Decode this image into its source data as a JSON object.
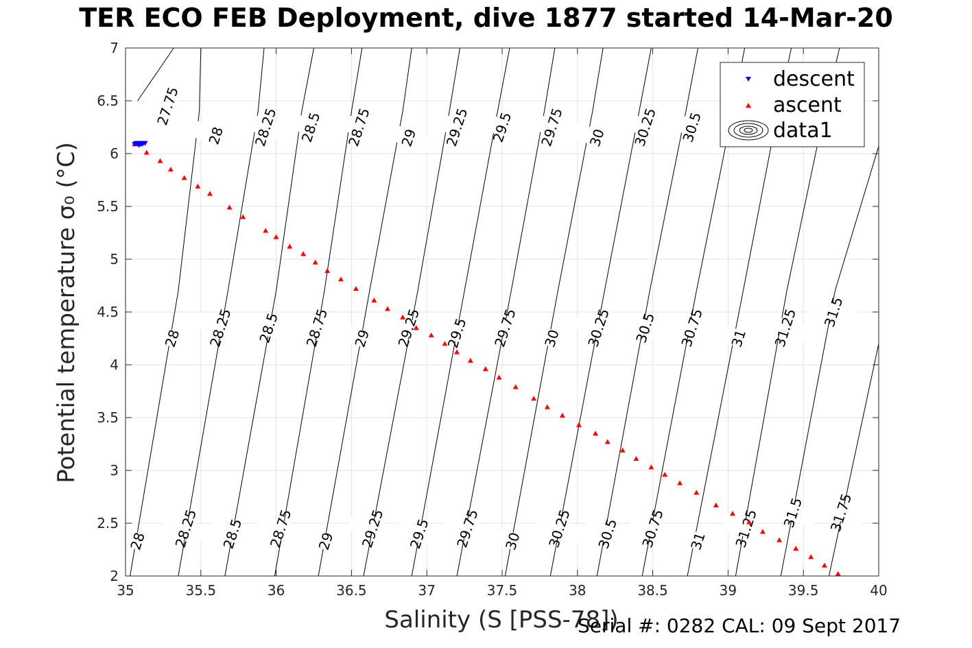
{
  "figure": {
    "title": "TER ECO FEB Deployment, dive 1877 started 14-Mar-20",
    "serial_note": "Serial #: 0282  CAL: 09 Sept 2017"
  },
  "chart_data": {
    "type": "scatter",
    "xlabel": "Salinity (S [PSS-78])",
    "ylabel": "Potential temperature σ₀ (°C)",
    "xlim": [
      35,
      40
    ],
    "ylim": [
      2,
      7
    ],
    "x_ticks": [
      "35",
      "35.5",
      "36",
      "36.5",
      "37",
      "37.5",
      "38",
      "38.5",
      "39",
      "39.5",
      "40"
    ],
    "y_ticks": [
      "2",
      "2.5",
      "3",
      "3.5",
      "4",
      "4.5",
      "5",
      "5.5",
      "6",
      "6.5",
      "7"
    ],
    "grid": true,
    "legend_position": "top-right",
    "legend": [
      "descent",
      "ascent",
      "data1"
    ],
    "series": [
      {
        "name": "descent",
        "color": "#0000ff",
        "marker": "triangle-down",
        "x": [
          35.06,
          35.07,
          35.08,
          35.09,
          35.1,
          35.11,
          35.12,
          35.13,
          35.09,
          35.11
        ],
        "y": [
          6.09,
          6.1,
          6.09,
          6.1,
          6.09,
          6.1,
          6.1,
          6.1,
          6.08,
          6.09
        ]
      },
      {
        "name": "ascent",
        "color": "#ff0000",
        "marker": "triangle-up",
        "x": [
          35.06,
          35.14,
          35.23,
          35.3,
          35.39,
          35.48,
          35.56,
          35.69,
          35.78,
          35.93,
          36.0,
          36.09,
          36.18,
          36.26,
          36.34,
          36.43,
          36.53,
          36.65,
          36.74,
          36.84,
          36.93,
          37.03,
          37.12,
          37.2,
          37.29,
          37.39,
          37.48,
          37.59,
          37.71,
          37.8,
          37.9,
          38.01,
          38.12,
          38.2,
          38.3,
          38.39,
          38.49,
          38.58,
          38.68,
          38.79,
          38.92,
          39.03,
          39.14,
          39.23,
          39.34,
          39.45,
          39.55,
          39.64,
          39.73
        ],
        "y": [
          6.09,
          6.01,
          5.93,
          5.85,
          5.77,
          5.69,
          5.62,
          5.49,
          5.4,
          5.27,
          5.21,
          5.12,
          5.05,
          4.97,
          4.89,
          4.81,
          4.72,
          4.61,
          4.53,
          4.45,
          4.35,
          4.28,
          4.2,
          4.12,
          4.04,
          3.96,
          3.88,
          3.79,
          3.68,
          3.6,
          3.52,
          3.43,
          3.35,
          3.27,
          3.19,
          3.11,
          3.03,
          2.96,
          2.88,
          2.79,
          2.67,
          2.59,
          2.51,
          2.42,
          2.34,
          2.26,
          2.18,
          2.1,
          2.02
        ]
      }
    ],
    "density_contours": {
      "name": "data1",
      "color": "#000000",
      "lines": [
        {
          "label": "27.75",
          "points": [
            [
              35.08,
              6.5
            ],
            [
              35.32,
              7.0
            ]
          ]
        },
        {
          "label": "28",
          "points": [
            [
              35.03,
              2.0
            ],
            [
              35.35,
              4.7
            ],
            [
              35.49,
              6.4
            ],
            [
              35.5,
              7.0
            ]
          ]
        },
        {
          "label": "28.25",
          "points": [
            [
              35.35,
              2.0
            ],
            [
              35.68,
              4.7
            ],
            [
              35.88,
              6.4
            ],
            [
              35.92,
              7.0
            ]
          ]
        },
        {
          "label": "28.5",
          "points": [
            [
              35.66,
              2.0
            ],
            [
              36.0,
              4.7
            ],
            [
              36.17,
              6.4
            ],
            [
              36.25,
              7.0
            ]
          ]
        },
        {
          "label": "28.75",
          "points": [
            [
              35.99,
              2.0
            ],
            [
              36.32,
              4.7
            ],
            [
              36.5,
              6.4
            ],
            [
              36.57,
              7.0
            ]
          ]
        },
        {
          "label": "29",
          "points": [
            [
              36.28,
              2.0
            ],
            [
              36.62,
              4.7
            ],
            [
              36.84,
              6.4
            ],
            [
              36.9,
              7.0
            ]
          ]
        },
        {
          "label": "29.25",
          "points": [
            [
              36.58,
              2.0
            ],
            [
              36.94,
              4.7
            ],
            [
              37.15,
              6.4
            ],
            [
              37.22,
              7.0
            ]
          ]
        },
        {
          "label": "29.5",
          "points": [
            [
              36.9,
              2.0
            ],
            [
              37.25,
              4.7
            ],
            [
              37.47,
              6.4
            ],
            [
              37.55,
              7.0
            ]
          ]
        },
        {
          "label": "29.75",
          "points": [
            [
              37.2,
              2.0
            ],
            [
              37.56,
              4.7
            ],
            [
              37.78,
              6.4
            ],
            [
              37.85,
              7.0
            ]
          ]
        },
        {
          "label": "30",
          "points": [
            [
              37.52,
              2.0
            ],
            [
              37.87,
              4.7
            ],
            [
              38.1,
              6.4
            ],
            [
              38.17,
              7.0
            ]
          ]
        },
        {
          "label": "30.25",
          "points": [
            [
              37.82,
              2.0
            ],
            [
              38.18,
              4.7
            ],
            [
              38.41,
              6.4
            ],
            [
              38.49,
              7.0
            ]
          ]
        },
        {
          "label": "30.5",
          "points": [
            [
              38.13,
              2.0
            ],
            [
              38.48,
              4.7
            ],
            [
              38.72,
              6.4
            ],
            [
              38.8,
              7.0
            ]
          ]
        },
        {
          "label": "30.75",
          "points": [
            [
              38.43,
              2.0
            ],
            [
              38.79,
              4.7
            ],
            [
              39.03,
              6.4
            ],
            [
              39.11,
              7.0
            ]
          ]
        },
        {
          "label": "31",
          "points": [
            [
              38.73,
              2.0
            ],
            [
              39.1,
              4.7
            ],
            [
              39.33,
              6.4
            ],
            [
              39.42,
              7.0
            ]
          ]
        },
        {
          "label": "31.25",
          "points": [
            [
              39.05,
              2.0
            ],
            [
              39.39,
              4.7
            ],
            [
              39.64,
              6.4
            ],
            [
              39.74,
              7.0
            ]
          ]
        },
        {
          "label": "31.5",
          "points": [
            [
              39.35,
              2.0
            ],
            [
              39.71,
              4.7
            ],
            [
              40.0,
              6.07
            ]
          ]
        },
        {
          "label": "31.75",
          "points": [
            [
              39.67,
              2.0
            ],
            [
              40.0,
              4.2
            ]
          ]
        }
      ],
      "labels": [
        {
          "text": "27.75",
          "x": 35.28,
          "y": 6.45
        },
        {
          "text": "28",
          "x": 35.6,
          "y": 6.17
        },
        {
          "text": "28.25",
          "x": 35.93,
          "y": 6.25
        },
        {
          "text": "28.5",
          "x": 36.23,
          "y": 6.25
        },
        {
          "text": "28.75",
          "x": 36.55,
          "y": 6.25
        },
        {
          "text": "29",
          "x": 36.88,
          "y": 6.15
        },
        {
          "text": "29.25",
          "x": 37.2,
          "y": 6.25
        },
        {
          "text": "29.5",
          "x": 37.5,
          "y": 6.25
        },
        {
          "text": "29.75",
          "x": 37.83,
          "y": 6.25
        },
        {
          "text": "30",
          "x": 38.13,
          "y": 6.15
        },
        {
          "text": "30.25",
          "x": 38.45,
          "y": 6.25
        },
        {
          "text": "30.5",
          "x": 38.76,
          "y": 6.25
        },
        {
          "text": "28",
          "x": 35.31,
          "y": 4.25
        },
        {
          "text": "28.25",
          "x": 35.63,
          "y": 4.35
        },
        {
          "text": "28.5",
          "x": 35.95,
          "y": 4.35
        },
        {
          "text": "28.75",
          "x": 36.27,
          "y": 4.35
        },
        {
          "text": "29",
          "x": 36.57,
          "y": 4.25
        },
        {
          "text": "29.25",
          "x": 36.88,
          "y": 4.35
        },
        {
          "text": "29.5",
          "x": 37.2,
          "y": 4.3
        },
        {
          "text": "29.75",
          "x": 37.52,
          "y": 4.35
        },
        {
          "text": "30",
          "x": 37.83,
          "y": 4.25
        },
        {
          "text": "30.25",
          "x": 38.14,
          "y": 4.35
        },
        {
          "text": "30.5",
          "x": 38.45,
          "y": 4.35
        },
        {
          "text": "30.75",
          "x": 38.76,
          "y": 4.35
        },
        {
          "text": "31",
          "x": 39.07,
          "y": 4.25
        },
        {
          "text": "31.25",
          "x": 39.38,
          "y": 4.35
        },
        {
          "text": "31.5",
          "x": 39.7,
          "y": 4.5
        },
        {
          "text": "28",
          "x": 35.08,
          "y": 2.33
        },
        {
          "text": "28.25",
          "x": 35.4,
          "y": 2.45
        },
        {
          "text": "28.5",
          "x": 35.71,
          "y": 2.4
        },
        {
          "text": "28.75",
          "x": 36.03,
          "y": 2.45
        },
        {
          "text": "29",
          "x": 36.33,
          "y": 2.33
        },
        {
          "text": "29.25",
          "x": 36.64,
          "y": 2.45
        },
        {
          "text": "29.5",
          "x": 36.95,
          "y": 2.4
        },
        {
          "text": "29.75",
          "x": 37.27,
          "y": 2.45
        },
        {
          "text": "30",
          "x": 37.57,
          "y": 2.33
        },
        {
          "text": "30.25",
          "x": 37.88,
          "y": 2.45
        },
        {
          "text": "30.5",
          "x": 38.2,
          "y": 2.4
        },
        {
          "text": "30.75",
          "x": 38.5,
          "y": 2.45
        },
        {
          "text": "31",
          "x": 38.8,
          "y": 2.33
        },
        {
          "text": "31.25",
          "x": 39.12,
          "y": 2.45
        },
        {
          "text": "31.5",
          "x": 39.43,
          "y": 2.6
        },
        {
          "text": "31.75",
          "x": 39.75,
          "y": 2.6
        }
      ]
    }
  }
}
